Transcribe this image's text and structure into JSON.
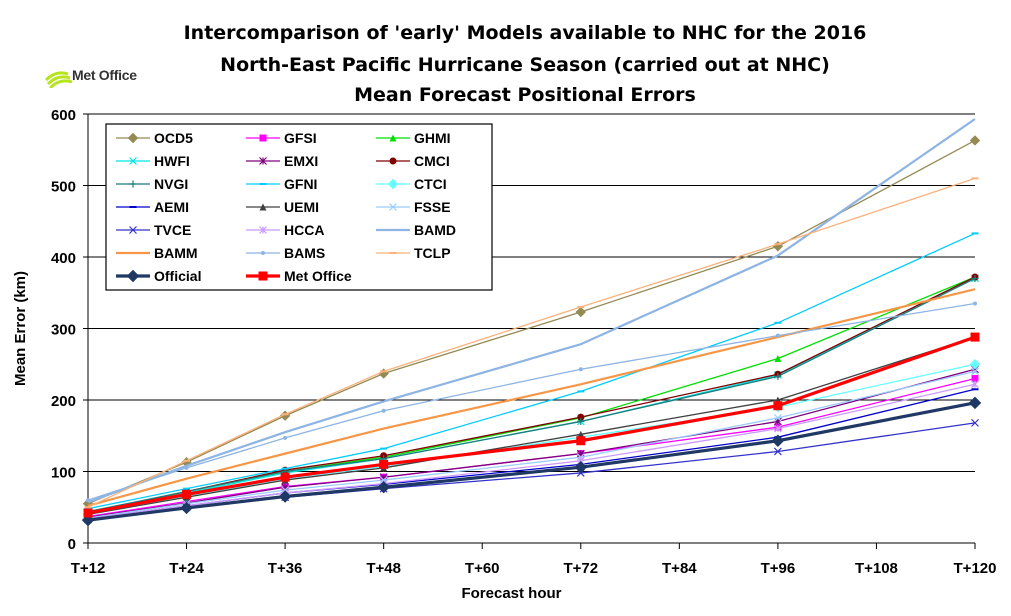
{
  "logo": {
    "text": "Met Office",
    "icon": "met-office-logo-icon",
    "color": "#b5e61d"
  },
  "chart_data": {
    "type": "line",
    "title": [
      "Intercomparison of 'early' Models available to NHC for the 2016",
      "North-East Pacific Hurricane Season (carried out at NHC)",
      "Mean Forecast Positional Errors"
    ],
    "xlabel": "Forecast hour",
    "ylabel": "Mean Error (km)",
    "x_ticks": [
      "T+12",
      "T+24",
      "T+36",
      "T+48",
      "T+60",
      "T+72",
      "T+84",
      "T+96",
      "T+108",
      "T+120"
    ],
    "x": [
      12,
      24,
      36,
      48,
      72,
      96,
      120
    ],
    "xlim": [
      12,
      120
    ],
    "ylim": [
      0,
      600
    ],
    "y_ticks": [
      0,
      100,
      200,
      300,
      400,
      500,
      600
    ],
    "grid": "horizontal",
    "legend_position": "top-left",
    "series": [
      {
        "name": "OCD5",
        "color": "#948a54",
        "marker": "diamond",
        "width": 1.3,
        "values": [
          55,
          113,
          178,
          237,
          323,
          415,
          563
        ]
      },
      {
        "name": "GFSI",
        "color": "#ff00ff",
        "marker": "square",
        "width": 1.3,
        "values": [
          37,
          58,
          79,
          92,
          125,
          162,
          230
        ]
      },
      {
        "name": "GHMI",
        "color": "#00e000",
        "marker": "triangle",
        "width": 1.3,
        "values": [
          42,
          72,
          100,
          120,
          175,
          258,
          372
        ]
      },
      {
        "name": "HWFI",
        "color": "#00e5e5",
        "marker": "x",
        "width": 1.3,
        "values": [
          40,
          70,
          98,
          118,
          170,
          235,
          370
        ]
      },
      {
        "name": "EMXI",
        "color": "#7f007f",
        "marker": "star",
        "width": 1.3,
        "values": [
          36,
          56,
          78,
          92,
          125,
          170,
          243
        ]
      },
      {
        "name": "CMCI",
        "color": "#800000",
        "marker": "circle",
        "width": 1.3,
        "values": [
          43,
          72,
          102,
          122,
          176,
          236,
          372
        ]
      },
      {
        "name": "NVGI",
        "color": "#1f7b7b",
        "marker": "plus",
        "width": 1.3,
        "values": [
          44,
          72,
          100,
          118,
          170,
          233,
          370
        ]
      },
      {
        "name": "GFNI",
        "color": "#00ccff",
        "marker": "dash",
        "width": 1.3,
        "values": [
          48,
          76,
          104,
          132,
          212,
          308,
          433
        ]
      },
      {
        "name": "CTCI",
        "color": "#66ffff",
        "marker": "diamond",
        "width": 1.3,
        "values": [
          40,
          65,
          90,
          107,
          148,
          190,
          250
        ]
      },
      {
        "name": "AEMI",
        "color": "#0000cc",
        "marker": "dash",
        "width": 1.3,
        "values": [
          34,
          52,
          70,
          82,
          110,
          148,
          215
        ]
      },
      {
        "name": "UEMI",
        "color": "#404040",
        "marker": "triangle",
        "width": 1.3,
        "values": [
          40,
          64,
          88,
          105,
          152,
          200,
          288
        ]
      },
      {
        "name": "FSSE",
        "color": "#99ccff",
        "marker": "x",
        "width": 1.3,
        "values": [
          35,
          55,
          74,
          88,
          120,
          175,
          240
        ]
      },
      {
        "name": "TVCE",
        "color": "#3333cc",
        "marker": "x",
        "width": 1.3,
        "values": [
          33,
          50,
          64,
          76,
          98,
          128,
          168
        ]
      },
      {
        "name": "HCCA",
        "color": "#cc99ff",
        "marker": "star",
        "width": 1.3,
        "values": [
          34,
          52,
          70,
          83,
          115,
          160,
          222
        ]
      },
      {
        "name": "BAMD",
        "color": "#8eb4e3",
        "marker": "none",
        "width": 2.2,
        "values": [
          57,
          108,
          155,
          198,
          278,
          402,
          593
        ]
      },
      {
        "name": "BAMM",
        "color": "#f79646",
        "marker": "none",
        "width": 2.2,
        "values": [
          52,
          90,
          125,
          160,
          222,
          288,
          355
        ]
      },
      {
        "name": "BAMS",
        "color": "#8db4e2",
        "marker": "dot",
        "width": 1.3,
        "values": [
          60,
          105,
          147,
          185,
          243,
          290,
          335
        ]
      },
      {
        "name": "TCLP",
        "color": "#fab27a",
        "marker": "dash",
        "width": 1.3,
        "values": [
          50,
          115,
          180,
          240,
          330,
          418,
          510
        ]
      },
      {
        "name": "Official",
        "color": "#1f3864",
        "marker": "diamond",
        "width": 3.2,
        "values": [
          32,
          49,
          65,
          78,
          106,
          143,
          196
        ]
      },
      {
        "name": "Met Office",
        "color": "#ff0000",
        "marker": "square",
        "width": 3.2,
        "values": [
          42,
          68,
          92,
          110,
          143,
          192,
          288
        ]
      }
    ]
  }
}
